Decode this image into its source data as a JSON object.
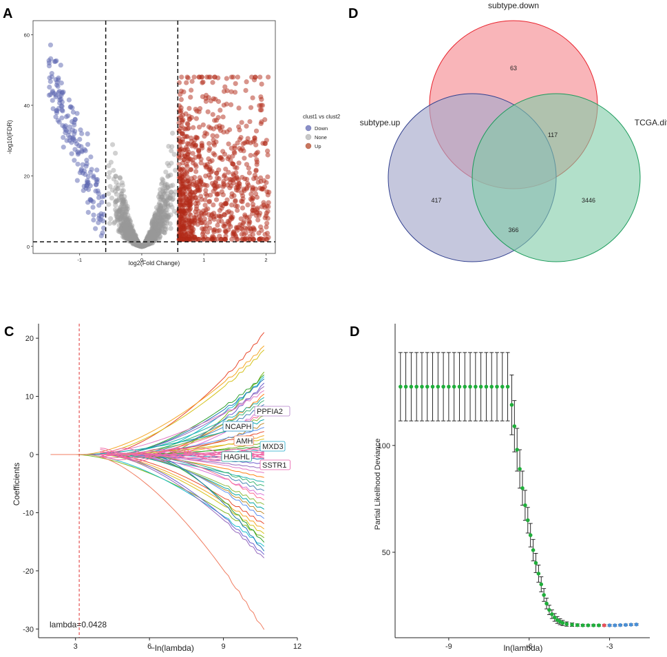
{
  "panels": {
    "a": "A",
    "b": "D",
    "c": "C",
    "d": "D"
  },
  "volcano": {
    "xlabel": "log2(Fold Change)",
    "ylabel": "-log10(FDR)",
    "x_ticks": [
      "-1",
      "0",
      "1",
      "2"
    ],
    "y_ticks": [
      "0",
      "20",
      "40",
      "60"
    ],
    "legend_title": "clust1 vs clust2",
    "legend": [
      {
        "label": "Down",
        "color": "#8a8fc7"
      },
      {
        "label": "None",
        "color": "#c8c8c8"
      },
      {
        "label": "Up",
        "color": "#c8765f"
      }
    ],
    "colors": {
      "down": "#5a63b0",
      "none": "#9a9a9a",
      "up": "#b22a18"
    },
    "xlim": [
      -1.75,
      2.15
    ],
    "ylim": [
      -2,
      64
    ],
    "thresholds": {
      "fc": [
        -0.58,
        0.58
      ],
      "fdr": 1.3
    }
  },
  "venn": {
    "sets": [
      {
        "label": "subtype.down",
        "fill": "#f8a3a8",
        "stroke": "#e8202a"
      },
      {
        "label": "subtype.up",
        "fill": "#a6a9cb",
        "stroke": "#2f3e8e"
      },
      {
        "label": "TCGA.diff",
        "fill": "#7ecba6",
        "stroke": "#1a9a5a"
      }
    ],
    "counts": {
      "down_only": "63",
      "up_only": "417",
      "tcga_only": "3446",
      "down_tcga": "117",
      "up_tcga": "366"
    }
  },
  "chart_data": [
    {
      "type": "scatter",
      "title": "",
      "xlabel": "log2(Fold Change)",
      "ylabel": "-log10(FDR)",
      "xlim": [
        -1.75,
        2.15
      ],
      "ylim": [
        -2,
        64
      ],
      "series": [
        {
          "name": "Down",
          "x": [
            -1.6,
            -1.45,
            -1.32,
            -1.2,
            -1.1,
            -0.95,
            -0.85,
            -0.75,
            -0.68,
            -0.62
          ],
          "y": [
            61,
            60,
            52,
            55,
            48,
            44,
            36,
            28,
            18,
            8
          ]
        },
        {
          "name": "Up",
          "x": [
            0.65,
            0.8,
            0.9,
            1.0,
            1.1,
            1.25,
            1.4,
            1.6,
            1.8,
            2.0
          ],
          "y": [
            20,
            35,
            45,
            48,
            38,
            30,
            27,
            22,
            18,
            25
          ]
        }
      ]
    },
    {
      "type": "venn",
      "sets": [
        "subtype.down",
        "subtype.up",
        "TCGA.diff"
      ],
      "values": {
        "subtype.down only": 63,
        "subtype.up only": 417,
        "TCGA.diff only": 3446,
        "subtype.down & TCGA.diff": 117,
        "subtype.up & TCGA.diff": 366
      }
    },
    {
      "type": "line",
      "xlabel": "−ln(lambda)",
      "ylabel": "Coefficients",
      "xlim": [
        1.5,
        12
      ],
      "ylim": [
        -31.5,
        22.5
      ],
      "x_ticks": [
        "3",
        "6",
        "9",
        "12"
      ],
      "y_ticks": [
        "-30",
        "-20",
        "-10",
        "0",
        "10",
        "20"
      ],
      "annotation": "lambda=0.0428",
      "lambda_line_x": 3.15,
      "gene_labels": [
        {
          "label": "PPFIA2",
          "y": 7.5,
          "color": "#b07cc8"
        },
        {
          "label": "NCAPH",
          "y": 3.5,
          "color": "#1b8cc5"
        },
        {
          "label": "AMH",
          "y": 2.5,
          "color": "#f07c50"
        },
        {
          "label": "MXD3",
          "y": 1.5,
          "color": "#1ba7c9"
        },
        {
          "label": "HAGHL",
          "y": -0.3,
          "color": "#16a898"
        },
        {
          "label": "SSTR1",
          "y": -2.2,
          "color": "#e858a8"
        }
      ],
      "final_values": [
        20.8,
        18.5,
        17.8,
        14,
        13.5,
        13.2,
        12.8,
        12.1,
        11.5,
        10.8,
        10.2,
        9.6,
        9.1,
        8.4,
        7.8,
        7.1,
        6.5,
        5.8,
        5.2,
        4.6,
        3.9,
        3.2,
        2.6,
        2.0,
        1.4,
        0.8,
        -0.8,
        -1.6,
        -2.4,
        -3.2,
        -4.0,
        -4.8,
        -5.6,
        -6.4,
        -7.2,
        -8.0,
        -8.8,
        -9.6,
        -10.4,
        -11.2,
        -12.1,
        -13.0,
        -13.8,
        -14.5,
        -15.3,
        -16.0,
        -16.8,
        -17.4,
        -18.0,
        -30.3
      ]
    },
    {
      "type": "line",
      "xlabel": "ln(lambda)",
      "ylabel": "Partial Likelihood Deviance",
      "xlim": [
        -11,
        -1.5
      ],
      "ylim": [
        10,
        157
      ],
      "x_ticks": [
        "-9",
        "-6",
        "-3"
      ],
      "y_ticks": [
        "50",
        "100"
      ],
      "x": [
        -10.8,
        -10.6,
        -10.4,
        -10.2,
        -10.0,
        -9.8,
        -9.6,
        -9.4,
        -9.2,
        -9.0,
        -8.8,
        -8.6,
        -8.4,
        -8.2,
        -8.0,
        -7.8,
        -7.6,
        -7.4,
        -7.2,
        -7.0,
        -6.8,
        -6.65,
        -6.55,
        -6.45,
        -6.35,
        -6.25,
        -6.15,
        -6.05,
        -5.95,
        -5.85,
        -5.75,
        -5.65,
        -5.55,
        -5.45,
        -5.35,
        -5.25,
        -5.15,
        -5.05,
        -4.95,
        -4.85,
        -4.75,
        -4.6,
        -4.4,
        -4.2,
        -4.0,
        -3.8,
        -3.6,
        -3.4,
        -3.2,
        -3.0,
        -2.8,
        -2.6,
        -2.4,
        -2.2,
        -2.0
      ],
      "y": [
        127.5,
        127.5,
        127.5,
        127.5,
        127.5,
        127.5,
        127.5,
        127.5,
        127.5,
        127.5,
        127.5,
        127.5,
        127.5,
        127.5,
        127.5,
        127.5,
        127.5,
        127.5,
        127.5,
        127.5,
        127.5,
        119,
        109,
        98,
        89,
        80,
        72,
        65,
        58,
        51,
        45,
        40,
        35,
        30,
        26,
        23,
        21,
        19.5,
        18.3,
        17.5,
        16.9,
        16.4,
        16.1,
        15.9,
        15.8,
        15.8,
        15.8,
        15.8,
        15.8,
        15.8,
        15.8,
        15.9,
        16.0,
        16.1,
        16.2
      ],
      "error": [
        16,
        16,
        16,
        16,
        16,
        16,
        16,
        16,
        16,
        16,
        16,
        16,
        16,
        16,
        16,
        16,
        16,
        16,
        16,
        16,
        16,
        14,
        12,
        10,
        9,
        8,
        7,
        6,
        5.5,
        5,
        4.5,
        4,
        3.5,
        3,
        2.5,
        2.2,
        2,
        1.8,
        1.6,
        1.4,
        1.2,
        1.0,
        0.8,
        0.6,
        0.5,
        0.4,
        0.4,
        0.4,
        0.4,
        0.4,
        0.4,
        0.4,
        0.4,
        0.4,
        0.4
      ],
      "min_marker_x": -3.2
    }
  ]
}
